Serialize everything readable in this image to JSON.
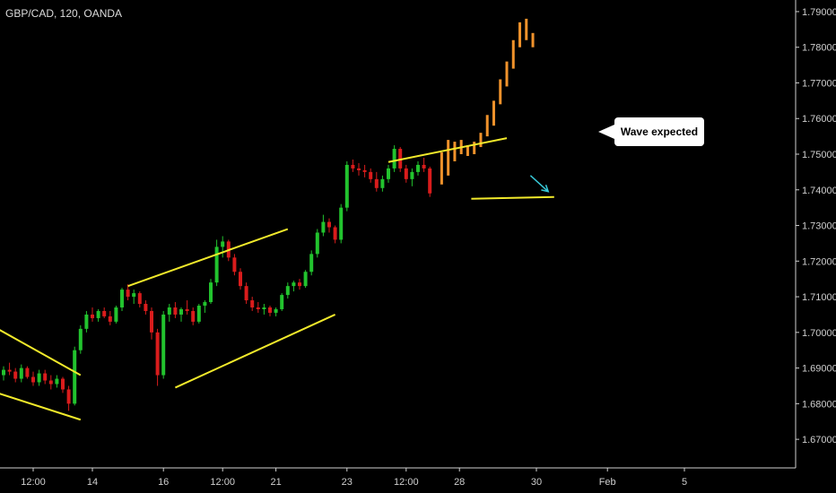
{
  "header": {
    "symbol_line": "GBP/CAD, 120, OANDA"
  },
  "annotation": {
    "text": "Wave expected"
  },
  "colors": {
    "background": "#000000",
    "bull": "#22c32e",
    "bear": "#d91c1c",
    "projection": "#f0922b",
    "trendline": "#f2ea2b",
    "arrow": "#38c9d8",
    "axis": "#cfcfcf"
  },
  "chart_data": {
    "type": "candlestick",
    "title": "GBP/CAD, 120, OANDA",
    "ylim": [
      1.665,
      1.792
    ],
    "y_ticks": [
      "1.79000",
      "1.78000",
      "1.77000",
      "1.76000",
      "1.75000",
      "1.74000",
      "1.73000",
      "1.72000",
      "1.71000",
      "1.70000",
      "1.69000",
      "1.68000",
      "1.67000"
    ],
    "y_tick_values": [
      1.79,
      1.78,
      1.77,
      1.76,
      1.75,
      1.74,
      1.73,
      1.72,
      1.71,
      1.7,
      1.69,
      1.68,
      1.67
    ],
    "x_ticks": [
      "12:00",
      "14",
      "16",
      "12:00",
      "21",
      "23",
      "12:00",
      "28",
      "30",
      "Feb",
      "5"
    ],
    "x_tick_index": [
      5,
      15,
      27,
      37,
      46,
      58,
      68,
      77,
      90,
      102,
      115
    ],
    "candles_ohlc": [
      [
        1.688,
        1.6905,
        1.6865,
        1.6895
      ],
      [
        1.6895,
        1.6915,
        1.688,
        1.689
      ],
      [
        1.689,
        1.69,
        1.686,
        1.687
      ],
      [
        1.687,
        1.691,
        1.686,
        1.69
      ],
      [
        1.69,
        1.6905,
        1.687,
        1.6875
      ],
      [
        1.6875,
        1.689,
        1.685,
        1.686
      ],
      [
        1.686,
        1.6895,
        1.685,
        1.6885
      ],
      [
        1.6885,
        1.6895,
        1.6855,
        1.6865
      ],
      [
        1.6865,
        1.688,
        1.684,
        1.6855
      ],
      [
        1.6855,
        1.688,
        1.6845,
        1.687
      ],
      [
        1.687,
        1.6875,
        1.683,
        1.684
      ],
      [
        1.684,
        1.685,
        1.678,
        1.68
      ],
      [
        1.68,
        1.696,
        1.6795,
        1.695
      ],
      [
        1.695,
        1.702,
        1.694,
        1.701
      ],
      [
        1.701,
        1.706,
        1.7,
        1.705
      ],
      [
        1.705,
        1.707,
        1.703,
        1.704
      ],
      [
        1.704,
        1.7065,
        1.703,
        1.706
      ],
      [
        1.706,
        1.707,
        1.704,
        1.7045
      ],
      [
        1.7045,
        1.706,
        1.702,
        1.703
      ],
      [
        1.703,
        1.7075,
        1.7025,
        1.707
      ],
      [
        1.707,
        1.7125,
        1.706,
        1.712
      ],
      [
        1.712,
        1.7135,
        1.709,
        1.71
      ],
      [
        1.71,
        1.712,
        1.708,
        1.711
      ],
      [
        1.711,
        1.7115,
        1.707,
        1.708
      ],
      [
        1.708,
        1.709,
        1.705,
        1.706
      ],
      [
        1.706,
        1.707,
        1.698,
        1.7
      ],
      [
        1.7,
        1.701,
        1.685,
        1.688
      ],
      [
        1.688,
        1.706,
        1.687,
        1.705
      ],
      [
        1.705,
        1.708,
        1.703,
        1.707
      ],
      [
        1.707,
        1.7085,
        1.704,
        1.705
      ],
      [
        1.705,
        1.707,
        1.703,
        1.7065
      ],
      [
        1.7065,
        1.709,
        1.705,
        1.706
      ],
      [
        1.706,
        1.707,
        1.702,
        1.703
      ],
      [
        1.703,
        1.708,
        1.7025,
        1.7075
      ],
      [
        1.7075,
        1.709,
        1.7055,
        1.7085
      ],
      [
        1.7085,
        1.715,
        1.708,
        1.714
      ],
      [
        1.714,
        1.726,
        1.713,
        1.724
      ],
      [
        1.724,
        1.727,
        1.721,
        1.7255
      ],
      [
        1.7255,
        1.726,
        1.72,
        1.721
      ],
      [
        1.721,
        1.722,
        1.716,
        1.717
      ],
      [
        1.717,
        1.718,
        1.712,
        1.713
      ],
      [
        1.713,
        1.714,
        1.708,
        1.709
      ],
      [
        1.709,
        1.71,
        1.706,
        1.707
      ],
      [
        1.707,
        1.7085,
        1.7055,
        1.7065
      ],
      [
        1.7065,
        1.708,
        1.705,
        1.707
      ],
      [
        1.707,
        1.7075,
        1.7045,
        1.7055
      ],
      [
        1.7055,
        1.707,
        1.7045,
        1.7065
      ],
      [
        1.7065,
        1.711,
        1.706,
        1.7105
      ],
      [
        1.7105,
        1.714,
        1.7095,
        1.713
      ],
      [
        1.713,
        1.7145,
        1.7115,
        1.714
      ],
      [
        1.714,
        1.715,
        1.712,
        1.713
      ],
      [
        1.713,
        1.7175,
        1.7125,
        1.717
      ],
      [
        1.717,
        1.723,
        1.716,
        1.722
      ],
      [
        1.722,
        1.729,
        1.721,
        1.728
      ],
      [
        1.728,
        1.733,
        1.727,
        1.731
      ],
      [
        1.731,
        1.732,
        1.728,
        1.7295
      ],
      [
        1.7295,
        1.73,
        1.725,
        1.726
      ],
      [
        1.726,
        1.736,
        1.725,
        1.735
      ],
      [
        1.735,
        1.748,
        1.734,
        1.747
      ],
      [
        1.747,
        1.7485,
        1.745,
        1.746
      ],
      [
        1.746,
        1.7475,
        1.744,
        1.7455
      ],
      [
        1.7455,
        1.747,
        1.7435,
        1.745
      ],
      [
        1.745,
        1.746,
        1.742,
        1.743
      ],
      [
        1.743,
        1.745,
        1.7395,
        1.7405
      ],
      [
        1.7405,
        1.744,
        1.7395,
        1.743
      ],
      [
        1.743,
        1.747,
        1.742,
        1.746
      ],
      [
        1.746,
        1.7525,
        1.745,
        1.7515
      ],
      [
        1.7515,
        1.752,
        1.745,
        1.746
      ],
      [
        1.746,
        1.747,
        1.742,
        1.743
      ],
      [
        1.743,
        1.746,
        1.741,
        1.745
      ],
      [
        1.745,
        1.748,
        1.744,
        1.747
      ],
      [
        1.747,
        1.749,
        1.745,
        1.746
      ],
      [
        1.746,
        1.7465,
        1.738,
        1.739
      ]
    ],
    "projection_bars": [
      [
        1.7415,
        1.7505
      ],
      [
        1.744,
        1.754
      ],
      [
        1.748,
        1.7535
      ],
      [
        1.75,
        1.754
      ],
      [
        1.7495,
        1.7525
      ],
      [
        1.75,
        1.7535
      ],
      [
        1.752,
        1.756
      ],
      [
        1.755,
        1.761
      ],
      [
        1.758,
        1.765
      ],
      [
        1.764,
        1.771
      ],
      [
        1.769,
        1.776
      ],
      [
        1.774,
        1.782
      ],
      [
        1.78,
        1.787
      ],
      [
        1.782,
        1.788
      ],
      [
        1.78,
        1.784
      ]
    ],
    "trendlines": [
      {
        "from": [
          -1,
          1.701
        ],
        "to": [
          13,
          1.688
        ]
      },
      {
        "from": [
          -1,
          1.683
        ],
        "to": [
          13,
          1.6755
        ]
      },
      {
        "from": [
          21,
          1.713
        ],
        "to": [
          48,
          1.729
        ]
      },
      {
        "from": [
          29,
          1.6845
        ],
        "to": [
          56,
          1.705
        ]
      },
      {
        "from": [
          65,
          1.7478
        ],
        "to": [
          85,
          1.7545
        ]
      },
      {
        "from": [
          79,
          1.7375
        ],
        "to": [
          93,
          1.738
        ]
      }
    ],
    "arrow": {
      "from": [
        89,
        1.744
      ],
      "to": [
        92,
        1.7395
      ]
    },
    "callout_text": "Wave expected"
  }
}
